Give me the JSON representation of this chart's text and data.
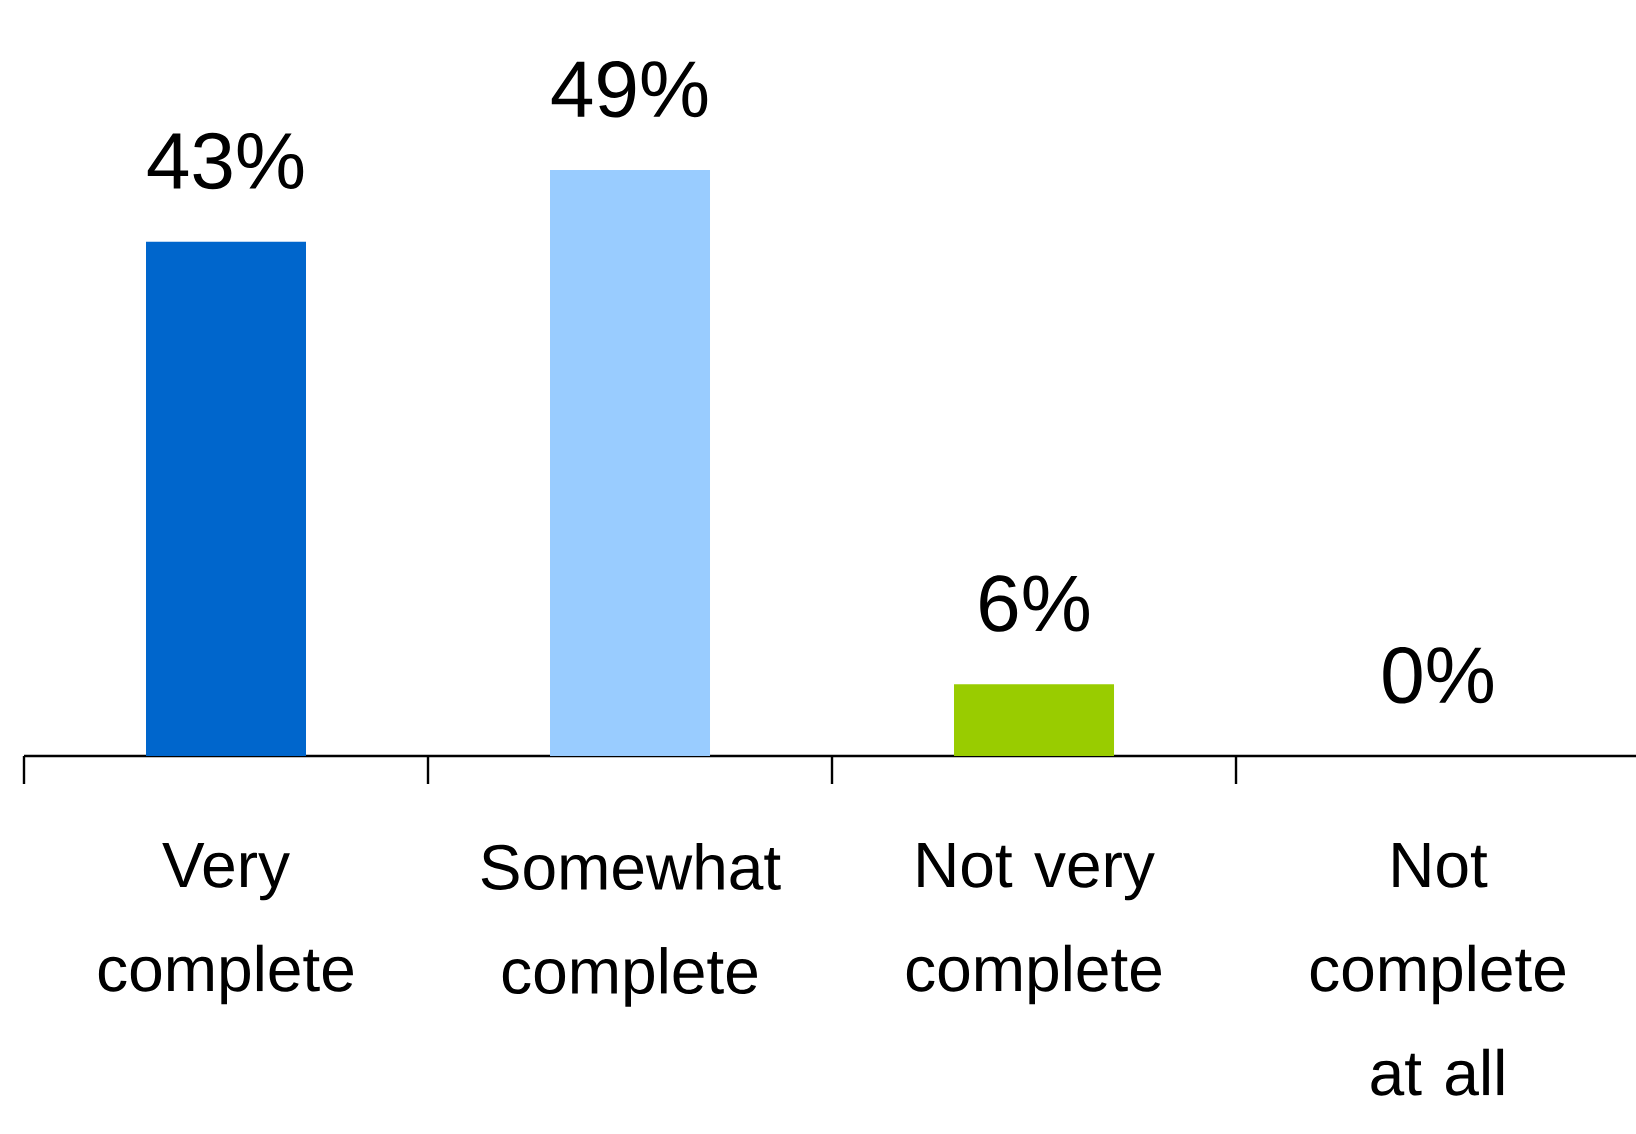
{
  "chart_data": {
    "type": "bar",
    "categories": [
      "Very complete",
      "Somewhat complete",
      "Not very complete",
      "Not complete at all"
    ],
    "values": [
      43,
      49,
      6,
      0
    ],
    "colors": [
      "#0066cc",
      "#99ccff",
      "#99cc00",
      "#808080"
    ],
    "value_labels": [
      "43%",
      "49%",
      "6%",
      "0%"
    ]
  }
}
